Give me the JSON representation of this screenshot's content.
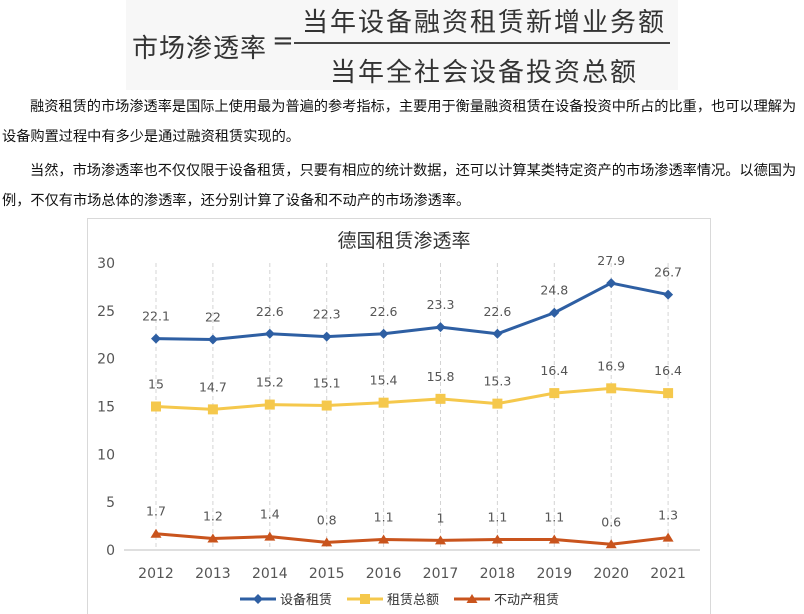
{
  "formula": {
    "lhs": "市场渗透率",
    "eq": "=",
    "numerator": "当年设备融资租赁新增业务额",
    "denominator": "当年全社会设备投资总额"
  },
  "paragraphs": [
    "融资租赁的市场渗透率是国际上使用最为普遍的参考指标，主要用于衡量融资租赁在设备投资中所占的比重，也可以理解为设备购置过程中有多少是通过融资租赁实现的。",
    "当然，市场渗透率也不仅仅限于设备租赁，只要有相应的统计数据，还可以计算某类特定资产的市场渗透率情况。以德国为例，不仅有市场总体的渗透率，还分别计算了设备和不动产的市场渗透率。"
  ],
  "chart_data": {
    "type": "line",
    "title": "德国租赁渗透率",
    "categories": [
      "2012",
      "2013",
      "2014",
      "2015",
      "2016",
      "2017",
      "2018",
      "2019",
      "2020",
      "2021"
    ],
    "ylim": [
      0,
      30
    ],
    "yticks": [
      0,
      5,
      10,
      15,
      20,
      25,
      30
    ],
    "grid": "vertical dashed",
    "legend": "bottom",
    "series": [
      {
        "name": "设备租赁",
        "color": "#2e5fa3",
        "marker": "diamond",
        "values": [
          22.1,
          22,
          22.6,
          22.3,
          22.6,
          23.3,
          22.6,
          24.8,
          27.9,
          26.7
        ],
        "labels": [
          "22.1",
          "22",
          "22.6",
          "22.3",
          "22.6",
          "23.3",
          "22.6",
          "24.8",
          "27.9",
          "26.7"
        ]
      },
      {
        "name": "租赁总额",
        "color": "#f5c84c",
        "marker": "square",
        "values": [
          15,
          14.7,
          15.2,
          15.1,
          15.4,
          15.8,
          15.3,
          16.4,
          16.9,
          16.4
        ],
        "labels": [
          "15",
          "14.7",
          "15.2",
          "15.1",
          "15.4",
          "15.8",
          "15.3",
          "16.4",
          "16.9",
          "16.4"
        ]
      },
      {
        "name": "不动产租赁",
        "color": "#c9541d",
        "marker": "triangle",
        "values": [
          1.7,
          1.2,
          1.4,
          0.8,
          1.1,
          1,
          1.1,
          1.1,
          0.6,
          1.3
        ],
        "labels": [
          "1.7",
          "1.2",
          "1.4",
          "0.8",
          "1.1",
          "1",
          "1.1",
          "1.1",
          "0.6",
          "1.3"
        ]
      }
    ]
  }
}
